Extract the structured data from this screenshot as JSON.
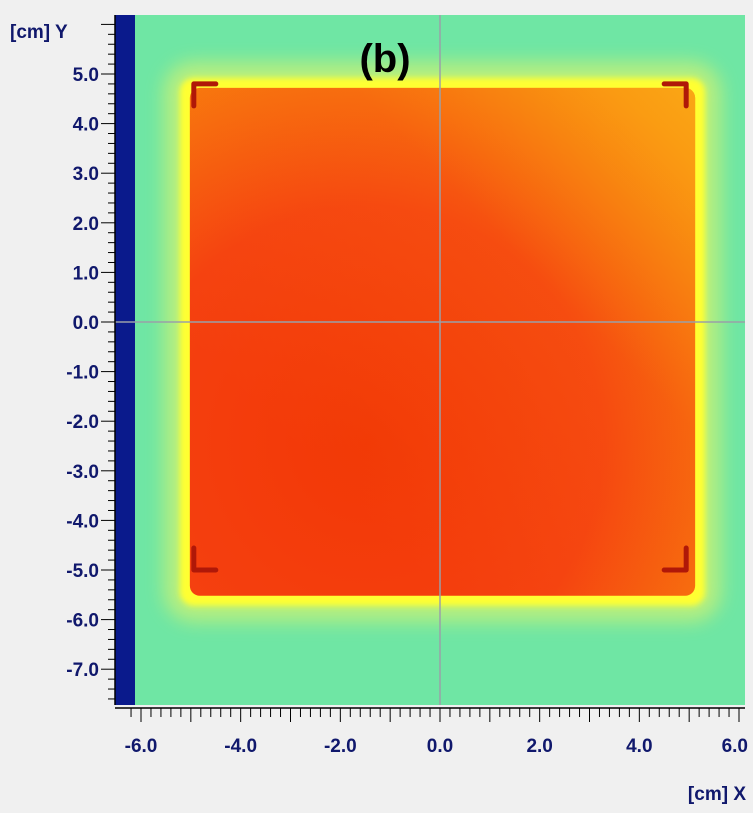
{
  "chart_data": {
    "type": "heatmap",
    "title": "(b)",
    "xlabel": "[cm] X",
    "ylabel": "[cm] Y",
    "x_ticks": [
      -6.0,
      -4.0,
      -2.0,
      0.0,
      2.0,
      4.0,
      6.0
    ],
    "x_tick_labels": [
      "-6.0",
      "-4.0",
      "-2.0",
      "0.0",
      "2.0",
      "4.0",
      "6.0"
    ],
    "y_ticks": [
      5.0,
      4.0,
      3.0,
      2.0,
      1.0,
      0.0,
      -1.0,
      -2.0,
      -3.0,
      -4.0,
      -5.0,
      -6.0,
      -7.0
    ],
    "y_tick_labels": [
      "5.0",
      "4.0",
      "3.0",
      "2.0",
      "1.0",
      "0.0",
      "-1.0",
      "-2.0",
      "-3.0",
      "-4.0",
      "-5.0",
      "-6.0",
      "-7.0"
    ],
    "xlim": [
      -6.3,
      6.0
    ],
    "ylim": [
      -7.6,
      6.1
    ],
    "field_region": {
      "x": [
        -5.1,
        5.2
      ],
      "y": [
        -5.6,
        4.8
      ]
    },
    "corner_marks": [
      [
        -4.9,
        4.8
      ],
      [
        4.9,
        4.8
      ],
      [
        -4.9,
        -5.0
      ],
      [
        4.9,
        -5.0
      ]
    ],
    "crosshair": [
      0.0,
      0.0
    ],
    "colors": {
      "background": "#6fe6a4",
      "field_core": "#f43a08",
      "field_upper_right": "#f9960e",
      "edge_glow": "#ffff33",
      "penumbra": "#bff07a",
      "strip": "#0a1a8c",
      "crosshair": "#9aa0a8",
      "text": "#10186c"
    }
  }
}
